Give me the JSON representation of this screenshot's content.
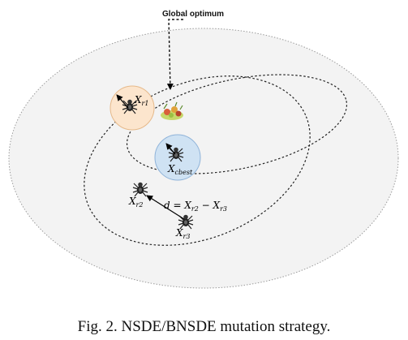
{
  "labels": {
    "global_optimum": "Global optimum",
    "xr1": {
      "base": "X",
      "sub": "r1"
    },
    "xcbest": {
      "base": "X",
      "sub": "cbest"
    },
    "xr2": {
      "base": "X",
      "sub": "r2"
    },
    "xr3": {
      "base": "X",
      "sub": "r3"
    },
    "difference": {
      "d": "d",
      "eq": " = ",
      "x1": "X",
      "s1": "r2",
      "minus": " − ",
      "x2": "X",
      "s2": "r3"
    }
  },
  "caption": "Fig. 2. NSDE/BNSDE mutation strategy.",
  "colors": {
    "xr1_circle_fill": "#fce5cd",
    "xr1_circle_stroke": "#e6b98a",
    "cbest_circle_fill": "#cfe2f3",
    "cbest_circle_stroke": "#8fb3d9",
    "outer_ellipse_fill": "#f3f3f3"
  }
}
